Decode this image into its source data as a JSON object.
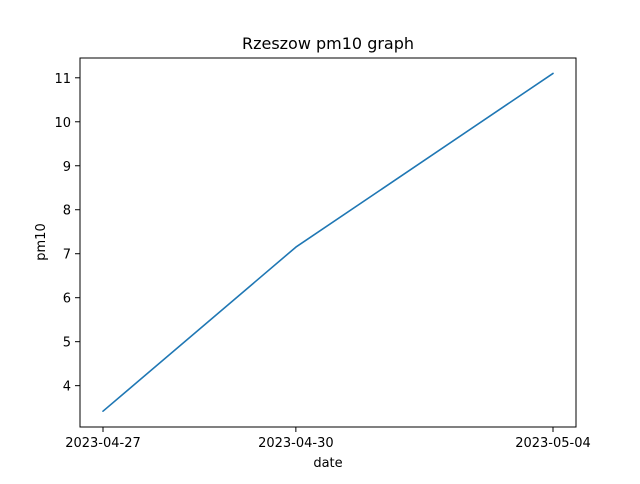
{
  "chart_data": {
    "type": "line",
    "title": "Rzeszow pm10 graph",
    "xlabel": "date",
    "ylabel": "pm10",
    "x": [
      "2023-04-27",
      "2023-04-30",
      "2023-05-04"
    ],
    "x_ticks": [
      "2023-04-27",
      "2023-04-30",
      "2023-05-04"
    ],
    "y_ticks": [
      4,
      5,
      6,
      7,
      8,
      9,
      10,
      11
    ],
    "ylim": [
      3.06,
      11.45
    ],
    "grid": false,
    "series": [
      {
        "values": [
          3.42,
          7.15,
          11.1
        ],
        "color": "#1f77b4"
      }
    ]
  }
}
